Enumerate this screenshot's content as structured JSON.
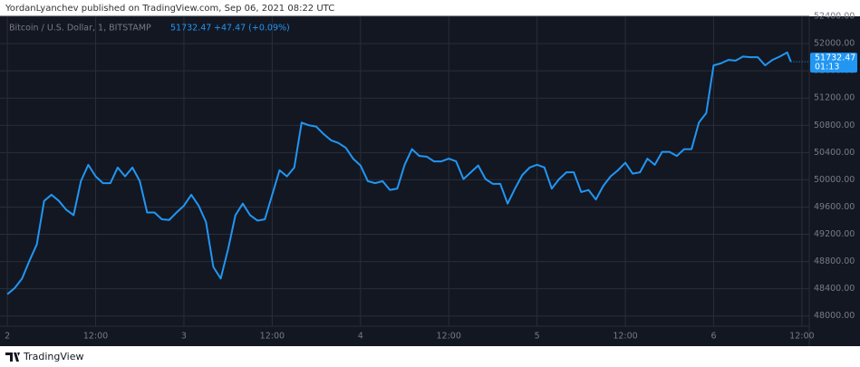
{
  "header": "YordanLyanchev published on TradingView.com, Sep 06, 2021 08:22 UTC",
  "footer": "TradingView",
  "chart_data": {
    "type": "line",
    "symbol": "Bitcoin / U.S. Dollar, 1, BITSTAMP",
    "legend_price": "51732.47",
    "legend_change": "+47.47 (+0.09%)",
    "price_tag": "51732.47",
    "countdown": "01:13",
    "color": "#2196f3",
    "grid": true,
    "xlim": [
      -1,
      109
    ],
    "xticks": [
      {
        "value": 0,
        "label": "2"
      },
      {
        "value": 12,
        "label": "12:00"
      },
      {
        "value": 24,
        "label": "3"
      },
      {
        "value": 36,
        "label": "12:00"
      },
      {
        "value": 48,
        "label": "4"
      },
      {
        "value": 60,
        "label": "12:00"
      },
      {
        "value": 72,
        "label": "5"
      },
      {
        "value": 84,
        "label": "12:00"
      },
      {
        "value": 96,
        "label": "6"
      },
      {
        "value": 108,
        "label": "12:00"
      }
    ],
    "ylim": [
      47850,
      52400
    ],
    "yticks": [
      {
        "value": 48000,
        "label": "48000.00"
      },
      {
        "value": 48400,
        "label": "48400.00"
      },
      {
        "value": 48800,
        "label": "48800.00"
      },
      {
        "value": 49200,
        "label": "49200.00"
      },
      {
        "value": 49600,
        "label": "49600.00"
      },
      {
        "value": 50000,
        "label": "50000.00"
      },
      {
        "value": 50400,
        "label": "50400.00"
      },
      {
        "value": 50800,
        "label": "50800.00"
      },
      {
        "value": 51200,
        "label": "51200.00"
      },
      {
        "value": 51600,
        "label": "51600.00"
      },
      {
        "value": 52000,
        "label": "52000.00"
      },
      {
        "value": 52400,
        "label": "52400.00"
      }
    ],
    "x": [
      0,
      1,
      2,
      3,
      4,
      5,
      6,
      7,
      8,
      9,
      10,
      11,
      12,
      13,
      14,
      15,
      16,
      17,
      18,
      19,
      20,
      21,
      22,
      23,
      24,
      25,
      26,
      27,
      28,
      29,
      30,
      31,
      32,
      33,
      34,
      35,
      36,
      37,
      38,
      39,
      40,
      41,
      42,
      43,
      44,
      45,
      46,
      47,
      48,
      49,
      50,
      51,
      52,
      53,
      54,
      55,
      56,
      57,
      58,
      59,
      60,
      61,
      62,
      63,
      64,
      65,
      66,
      67,
      68,
      69,
      70,
      71,
      72,
      73,
      74,
      75,
      76,
      77,
      78,
      79,
      80,
      81,
      82,
      83,
      84,
      85,
      86,
      87,
      88,
      89,
      90,
      91,
      92,
      93,
      94,
      95,
      96,
      97,
      98,
      99,
      100,
      101,
      102,
      103,
      104,
      105,
      106,
      106.5
    ],
    "values": [
      48320,
      48410,
      48550,
      48810,
      49050,
      49690,
      49780,
      49690,
      49560,
      49480,
      49980,
      50220,
      50050,
      49950,
      49950,
      50180,
      50050,
      50180,
      49980,
      49520,
      49520,
      49420,
      49410,
      49520,
      49620,
      49780,
      49620,
      49380,
      48720,
      48550,
      48980,
      49480,
      49650,
      49480,
      49400,
      49420,
      49780,
      50140,
      50050,
      50180,
      50840,
      50800,
      50780,
      50670,
      50580,
      50540,
      50470,
      50310,
      50210,
      49980,
      49950,
      49980,
      49850,
      49870,
      50220,
      50450,
      50350,
      50340,
      50270,
      50270,
      50310,
      50270,
      50010,
      50110,
      50210,
      50010,
      49940,
      49940,
      49650,
      49870,
      50070,
      50180,
      50220,
      50180,
      49870,
      50010,
      50110,
      50110,
      49820,
      49850,
      49710,
      49910,
      50050,
      50140,
      50250,
      50090,
      50110,
      50310,
      50220,
      50410,
      50410,
      50350,
      50450,
      50450,
      50840,
      50980,
      51680,
      51710,
      51760,
      51750,
      51810,
      51800,
      51800,
      51680,
      51760,
      51810,
      51870,
      51732.47
    ]
  }
}
